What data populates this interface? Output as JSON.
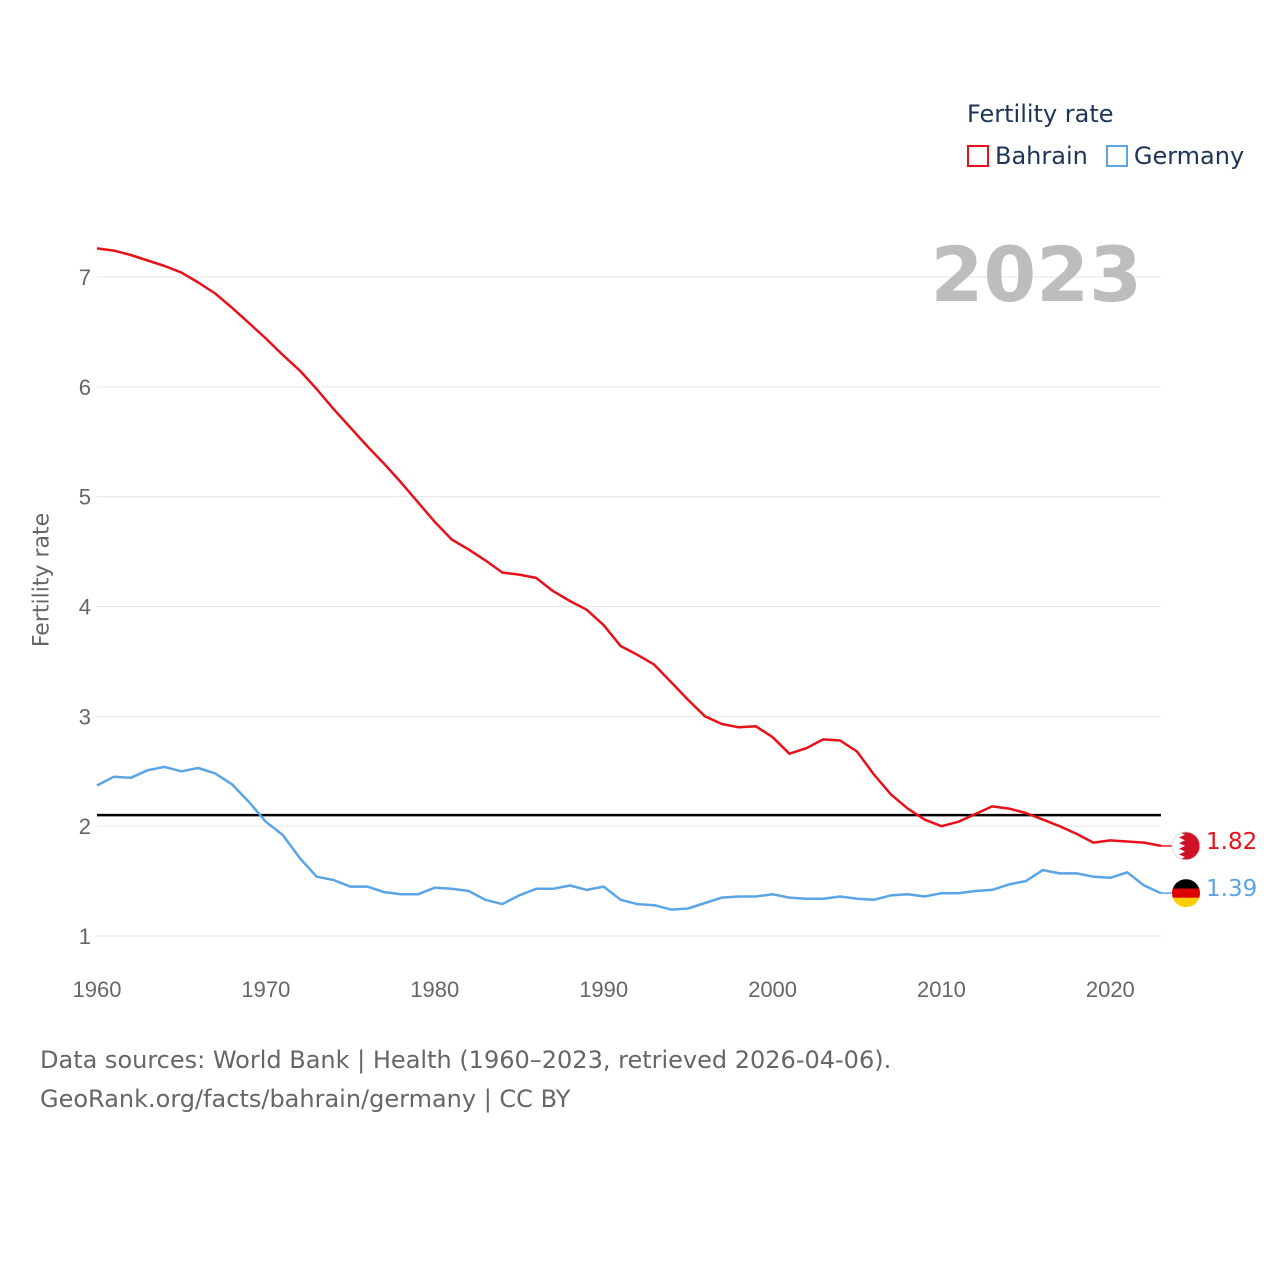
{
  "legend": {
    "title": "Fertility rate",
    "items": [
      {
        "label": "Bahrain",
        "color": "#e8111a"
      },
      {
        "label": "Germany",
        "color": "#5ba4e6"
      }
    ]
  },
  "year_label": "2023",
  "end_labels": {
    "bahrain": "1.82",
    "germany": "1.39"
  },
  "footer": {
    "line1": "Data sources: World Bank | Health (1960–2023, retrieved 2026-04-06).",
    "line2": "GeoRank.org/facts/bahrain/germany | CC BY"
  },
  "chart_data": {
    "type": "line",
    "title": "",
    "xlabel": "",
    "ylabel": "Fertility rate",
    "xlim": [
      1960,
      2023
    ],
    "ylim": [
      0.8,
      7.3
    ],
    "x_ticks": [
      1960,
      1970,
      1980,
      1990,
      2000,
      2010,
      2020
    ],
    "y_ticks": [
      1,
      2,
      3,
      4,
      5,
      6,
      7
    ],
    "reference_line": 2.1,
    "x": [
      1960,
      1961,
      1962,
      1963,
      1964,
      1965,
      1966,
      1967,
      1968,
      1969,
      1970,
      1971,
      1972,
      1973,
      1974,
      1975,
      1976,
      1977,
      1978,
      1979,
      1980,
      1981,
      1982,
      1983,
      1984,
      1985,
      1986,
      1987,
      1988,
      1989,
      1990,
      1991,
      1992,
      1993,
      1994,
      1995,
      1996,
      1997,
      1998,
      1999,
      2000,
      2001,
      2002,
      2003,
      2004,
      2005,
      2006,
      2007,
      2008,
      2009,
      2010,
      2011,
      2012,
      2013,
      2014,
      2015,
      2016,
      2017,
      2018,
      2019,
      2020,
      2021,
      2022,
      2023
    ],
    "series": [
      {
        "name": "Bahrain",
        "color": "#e8111a",
        "values": [
          7.26,
          7.24,
          7.2,
          7.15,
          7.1,
          7.04,
          6.95,
          6.85,
          6.72,
          6.58,
          6.44,
          6.29,
          6.15,
          5.98,
          5.8,
          5.63,
          5.46,
          5.3,
          5.13,
          4.95,
          4.77,
          4.61,
          4.52,
          4.42,
          4.31,
          4.29,
          4.26,
          4.14,
          4.05,
          3.97,
          3.83,
          3.64,
          3.56,
          3.47,
          3.31,
          3.15,
          3.0,
          2.93,
          2.9,
          2.91,
          2.81,
          2.66,
          2.71,
          2.79,
          2.78,
          2.68,
          2.47,
          2.29,
          2.16,
          2.06,
          2.0,
          2.04,
          2.11,
          2.18,
          2.16,
          2.12,
          2.06,
          2.0,
          1.93,
          1.85,
          1.87,
          1.86,
          1.85,
          1.82
        ]
      },
      {
        "name": "Germany",
        "color": "#5ba4e6",
        "values": [
          2.37,
          2.45,
          2.44,
          2.51,
          2.54,
          2.5,
          2.53,
          2.48,
          2.38,
          2.22,
          2.04,
          1.92,
          1.71,
          1.54,
          1.51,
          1.45,
          1.45,
          1.4,
          1.38,
          1.38,
          1.44,
          1.43,
          1.41,
          1.33,
          1.29,
          1.37,
          1.43,
          1.43,
          1.46,
          1.42,
          1.45,
          1.33,
          1.29,
          1.28,
          1.24,
          1.25,
          1.3,
          1.35,
          1.36,
          1.36,
          1.38,
          1.35,
          1.34,
          1.34,
          1.36,
          1.34,
          1.33,
          1.37,
          1.38,
          1.36,
          1.39,
          1.39,
          1.41,
          1.42,
          1.47,
          1.5,
          1.6,
          1.57,
          1.57,
          1.54,
          1.53,
          1.58,
          1.46,
          1.39
        ]
      }
    ]
  }
}
